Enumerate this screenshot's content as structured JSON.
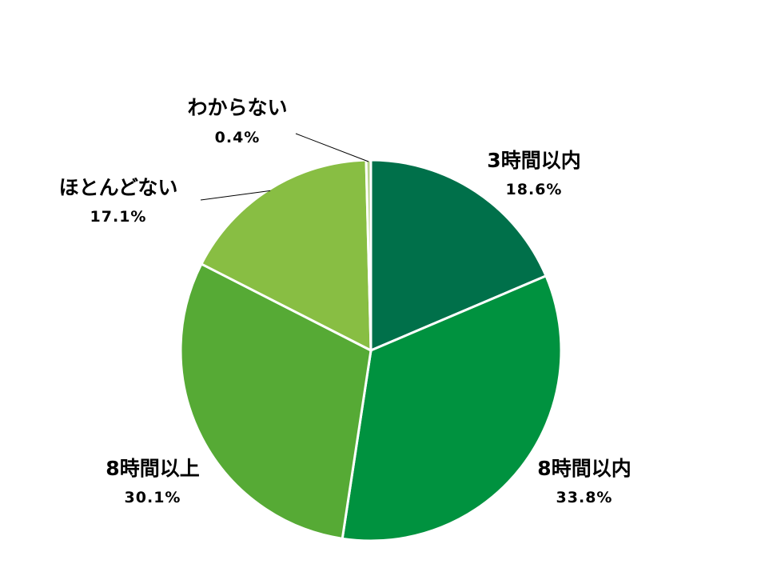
{
  "chart_data": {
    "type": "pie",
    "start_angle": "12 o'clock",
    "direction": "clockwise",
    "slices": [
      {
        "label": "3時間以内",
        "value": 18.6,
        "display": "18.6%",
        "color": "#00704A"
      },
      {
        "label": "8時間以内",
        "value": 33.8,
        "display": "33.8%",
        "color": "#00923F"
      },
      {
        "label": "8時間以上",
        "value": 30.1,
        "display": "30.1%",
        "color": "#56AA35"
      },
      {
        "label": "ほとんどない",
        "value": 17.1,
        "display": "17.1%",
        "color": "#88BE43"
      },
      {
        "label": "わからない",
        "value": 0.4,
        "display": "0.4%",
        "color": "#B5D38A"
      }
    ],
    "slice_border_color": "#FFFFFF",
    "label_color": "#000000"
  }
}
